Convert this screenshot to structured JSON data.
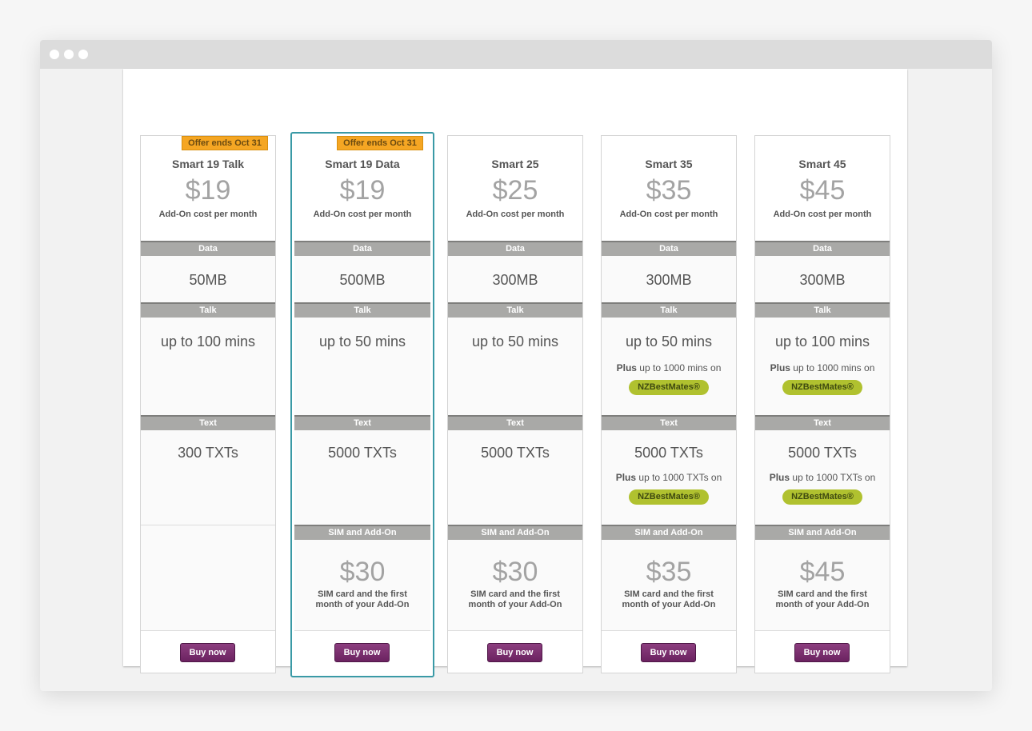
{
  "window": {
    "controls": [
      "dot",
      "dot",
      "dot"
    ]
  },
  "labels": {
    "price_sub": "Add-On cost per month",
    "data": "Data",
    "talk": "Talk",
    "text": "Text",
    "sim": "SIM and Add-On",
    "plus": "Plus",
    "talk_bonus": "up to 1000 mins on",
    "text_bonus": "up to 1000 TXTs on",
    "bestmates": "NZBestMates®",
    "sim_sub_1": "SIM card and the first",
    "sim_sub_2": "month of your Add-On",
    "buy": "Buy now"
  },
  "colors": {
    "accent": "#3a9aa6",
    "offer": "#f5a623",
    "bestmates": "#b0c12f",
    "buy_button": "#7b2d6f",
    "band": "#a9a9a7"
  },
  "plans": [
    {
      "name": "Smart 19 Talk",
      "price": "$19",
      "offer": "Offer ends Oct 31",
      "data": "50MB",
      "talk": "up to 100 mins",
      "text": "300 TXTs",
      "bestmates": false,
      "sim_price": "",
      "featured": false
    },
    {
      "name": "Smart 19 Data",
      "price": "$19",
      "offer": "Offer ends Oct 31",
      "data": "500MB",
      "talk": "up to 50 mins",
      "text": "5000 TXTs",
      "bestmates": false,
      "sim_price": "$30",
      "featured": true
    },
    {
      "name": "Smart 25",
      "price": "$25",
      "offer": "",
      "data": "300MB",
      "talk": "up to 50 mins",
      "text": "5000 TXTs",
      "bestmates": false,
      "sim_price": "$30",
      "featured": false
    },
    {
      "name": "Smart 35",
      "price": "$35",
      "offer": "",
      "data": "300MB",
      "talk": "up to 50 mins",
      "text": "5000 TXTs",
      "bestmates": true,
      "sim_price": "$35",
      "featured": false
    },
    {
      "name": "Smart 45",
      "price": "$45",
      "offer": "",
      "data": "300MB",
      "talk": "up to 100 mins",
      "text": "5000 TXTs",
      "bestmates": true,
      "sim_price": "$45",
      "featured": false
    }
  ]
}
